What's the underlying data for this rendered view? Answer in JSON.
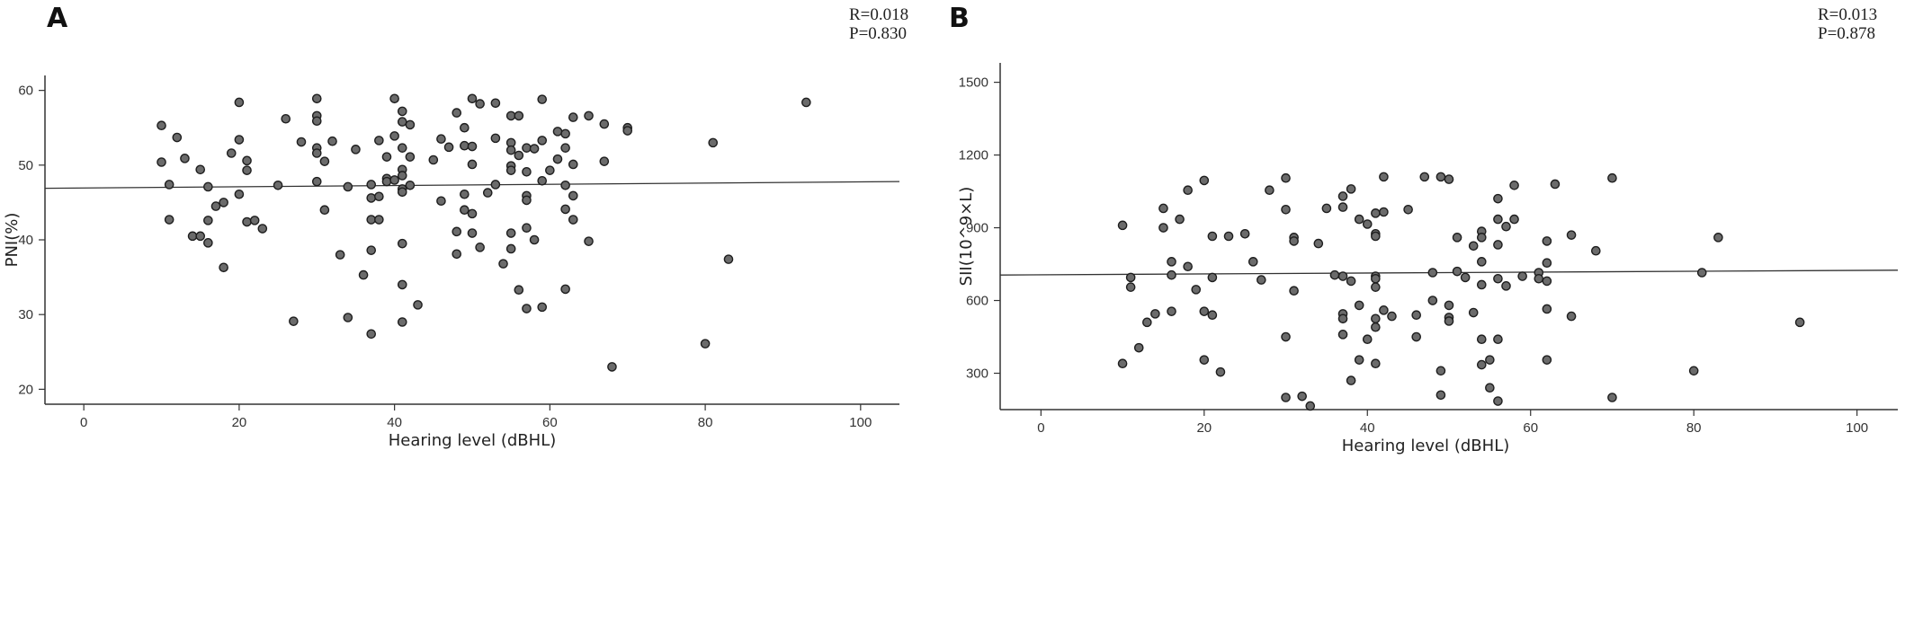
{
  "chart_data": [
    {
      "type": "scatter",
      "panel": "A",
      "stats": [
        "R=0.018",
        "P=0.830"
      ],
      "xlabel": "Hearing level (dBHL)",
      "ylabel": "PNI(%)",
      "xlim": [
        -5,
        105
      ],
      "ylim": [
        18,
        62
      ],
      "xticks": [
        0,
        20,
        40,
        60,
        80,
        100
      ],
      "yticks": [
        20,
        30,
        40,
        50,
        60
      ],
      "fit": {
        "x": [
          -5,
          105
        ],
        "y": [
          46.9,
          47.8
        ]
      },
      "points": [
        [
          10,
          55.3
        ],
        [
          10,
          50.4
        ],
        [
          11,
          47.4
        ],
        [
          11,
          42.7
        ],
        [
          12,
          53.7
        ],
        [
          13,
          50.9
        ],
        [
          14,
          40.5
        ],
        [
          15,
          49.4
        ],
        [
          15,
          40.5
        ],
        [
          16,
          47.1
        ],
        [
          16,
          42.6
        ],
        [
          16,
          39.6
        ],
        [
          17,
          44.5
        ],
        [
          18,
          45.0
        ],
        [
          18,
          36.3
        ],
        [
          19,
          51.6
        ],
        [
          20,
          58.4
        ],
        [
          20,
          53.4
        ],
        [
          20,
          46.1
        ],
        [
          21,
          42.4
        ],
        [
          21,
          49.3
        ],
        [
          21,
          50.6
        ],
        [
          22,
          42.6
        ],
        [
          23,
          41.5
        ],
        [
          25,
          47.3
        ],
        [
          26,
          56.2
        ],
        [
          27,
          29.1
        ],
        [
          28,
          53.1
        ],
        [
          30,
          58.9
        ],
        [
          30,
          56.6
        ],
        [
          30,
          55.9
        ],
        [
          30,
          52.3
        ],
        [
          30,
          51.6
        ],
        [
          30,
          47.8
        ],
        [
          31,
          50.5
        ],
        [
          31,
          44.0
        ],
        [
          32,
          53.2
        ],
        [
          33,
          38.0
        ],
        [
          34,
          47.1
        ],
        [
          34,
          29.6
        ],
        [
          35,
          52.1
        ],
        [
          36,
          35.3
        ],
        [
          37,
          47.4
        ],
        [
          37,
          45.6
        ],
        [
          37,
          42.7
        ],
        [
          37,
          38.6
        ],
        [
          37,
          27.4
        ],
        [
          38,
          53.3
        ],
        [
          38,
          45.8
        ],
        [
          38,
          42.7
        ],
        [
          39,
          51.1
        ],
        [
          39,
          48.2
        ],
        [
          39,
          47.8
        ],
        [
          40,
          58.9
        ],
        [
          40,
          53.9
        ],
        [
          40,
          48.0
        ],
        [
          41,
          57.2
        ],
        [
          41,
          55.8
        ],
        [
          41,
          52.3
        ],
        [
          41,
          49.4
        ],
        [
          41,
          48.6
        ],
        [
          41,
          46.8
        ],
        [
          41,
          46.4
        ],
        [
          41,
          39.5
        ],
        [
          41,
          34.0
        ],
        [
          41,
          29.0
        ],
        [
          42,
          55.4
        ],
        [
          42,
          51.1
        ],
        [
          42,
          47.3
        ],
        [
          43,
          31.3
        ],
        [
          45,
          50.7
        ],
        [
          46,
          53.5
        ],
        [
          46,
          45.2
        ],
        [
          47,
          52.4
        ],
        [
          48,
          57.0
        ],
        [
          48,
          41.1
        ],
        [
          48,
          38.1
        ],
        [
          49,
          55.0
        ],
        [
          49,
          52.6
        ],
        [
          49,
          46.1
        ],
        [
          49,
          44.0
        ],
        [
          50,
          58.9
        ],
        [
          50,
          52.5
        ],
        [
          50,
          50.1
        ],
        [
          50,
          43.5
        ],
        [
          50,
          40.9
        ],
        [
          51,
          58.2
        ],
        [
          51,
          39.0
        ],
        [
          52,
          46.3
        ],
        [
          53,
          58.3
        ],
        [
          53,
          53.6
        ],
        [
          53,
          47.4
        ],
        [
          54,
          36.8
        ],
        [
          55,
          56.6
        ],
        [
          55,
          53.0
        ],
        [
          55,
          52.0
        ],
        [
          55,
          49.9
        ],
        [
          55,
          49.3
        ],
        [
          55,
          40.9
        ],
        [
          55,
          38.8
        ],
        [
          56,
          56.6
        ],
        [
          56,
          51.3
        ],
        [
          56,
          33.3
        ],
        [
          57,
          52.3
        ],
        [
          57,
          49.1
        ],
        [
          57,
          45.9
        ],
        [
          57,
          45.3
        ],
        [
          57,
          41.6
        ],
        [
          57,
          30.8
        ],
        [
          58,
          52.2
        ],
        [
          58,
          40.0
        ],
        [
          59,
          58.8
        ],
        [
          59,
          53.3
        ],
        [
          59,
          47.9
        ],
        [
          59,
          31.0
        ],
        [
          60,
          49.3
        ],
        [
          61,
          54.5
        ],
        [
          61,
          50.8
        ],
        [
          62,
          54.2
        ],
        [
          62,
          52.3
        ],
        [
          62,
          47.3
        ],
        [
          62,
          44.1
        ],
        [
          62,
          33.4
        ],
        [
          63,
          50.1
        ],
        [
          63,
          45.9
        ],
        [
          63,
          42.7
        ],
        [
          63,
          56.4
        ],
        [
          65,
          56.6
        ],
        [
          65,
          39.8
        ],
        [
          67,
          55.5
        ],
        [
          67,
          50.5
        ],
        [
          68,
          23.0
        ],
        [
          70,
          55.0
        ],
        [
          70,
          54.6
        ],
        [
          80,
          26.1
        ],
        [
          81,
          53.0
        ],
        [
          83,
          37.4
        ],
        [
          93,
          58.4
        ]
      ]
    },
    {
      "type": "scatter",
      "panel": "B",
      "stats": [
        "R=0.013",
        "P=0.878"
      ],
      "xlabel": "Hearing level (dBHL)",
      "ylabel": "SII(10^9×L)",
      "xlim": [
        -5,
        105
      ],
      "ylim": [
        150,
        1580
      ],
      "xticks": [
        0,
        20,
        40,
        60,
        80,
        100
      ],
      "yticks": [
        300,
        600,
        900,
        1200,
        1500
      ],
      "fit": {
        "x": [
          -5,
          105
        ],
        "y": [
          705,
          725
        ]
      },
      "points": [
        [
          10,
          910
        ],
        [
          10,
          340
        ],
        [
          11,
          695
        ],
        [
          11,
          655
        ],
        [
          12,
          405
        ],
        [
          13,
          510
        ],
        [
          14,
          545
        ],
        [
          15,
          980
        ],
        [
          15,
          900
        ],
        [
          16,
          760
        ],
        [
          16,
          705
        ],
        [
          16,
          555
        ],
        [
          17,
          935
        ],
        [
          18,
          1055
        ],
        [
          18,
          740
        ],
        [
          19,
          645
        ],
        [
          20,
          1095
        ],
        [
          20,
          555
        ],
        [
          20,
          355
        ],
        [
          21,
          865
        ],
        [
          21,
          695
        ],
        [
          21,
          540
        ],
        [
          22,
          305
        ],
        [
          23,
          865
        ],
        [
          25,
          875
        ],
        [
          26,
          760
        ],
        [
          27,
          685
        ],
        [
          28,
          1055
        ],
        [
          30,
          1105
        ],
        [
          30,
          975
        ],
        [
          30,
          450
        ],
        [
          30,
          200
        ],
        [
          31,
          860
        ],
        [
          31,
          845
        ],
        [
          31,
          640
        ],
        [
          32,
          205
        ],
        [
          33,
          165
        ],
        [
          34,
          835
        ],
        [
          35,
          980
        ],
        [
          36,
          705
        ],
        [
          37,
          1030
        ],
        [
          37,
          985
        ],
        [
          37,
          700
        ],
        [
          37,
          545
        ],
        [
          37,
          525
        ],
        [
          37,
          460
        ],
        [
          38,
          1060
        ],
        [
          38,
          680
        ],
        [
          38,
          270
        ],
        [
          39,
          935
        ],
        [
          39,
          580
        ],
        [
          39,
          355
        ],
        [
          40,
          915
        ],
        [
          40,
          440
        ],
        [
          41,
          960
        ],
        [
          41,
          875
        ],
        [
          41,
          865
        ],
        [
          41,
          700
        ],
        [
          41,
          690
        ],
        [
          41,
          655
        ],
        [
          41,
          525
        ],
        [
          41,
          490
        ],
        [
          41,
          340
        ],
        [
          42,
          1110
        ],
        [
          42,
          965
        ],
        [
          42,
          560
        ],
        [
          43,
          535
        ],
        [
          45,
          975
        ],
        [
          46,
          540
        ],
        [
          46,
          450
        ],
        [
          47,
          1110
        ],
        [
          48,
          715
        ],
        [
          48,
          600
        ],
        [
          49,
          1110
        ],
        [
          49,
          310
        ],
        [
          49,
          210
        ],
        [
          50,
          1100
        ],
        [
          50,
          580
        ],
        [
          50,
          530
        ],
        [
          50,
          515
        ],
        [
          51,
          860
        ],
        [
          51,
          720
        ],
        [
          52,
          695
        ],
        [
          53,
          825
        ],
        [
          53,
          550
        ],
        [
          54,
          885
        ],
        [
          54,
          860
        ],
        [
          54,
          760
        ],
        [
          54,
          665
        ],
        [
          54,
          440
        ],
        [
          54,
          335
        ],
        [
          55,
          355
        ],
        [
          55,
          240
        ],
        [
          56,
          1020
        ],
        [
          56,
          935
        ],
        [
          56,
          830
        ],
        [
          56,
          690
        ],
        [
          56,
          440
        ],
        [
          56,
          185
        ],
        [
          57,
          905
        ],
        [
          57,
          660
        ],
        [
          58,
          935
        ],
        [
          58,
          1075
        ],
        [
          59,
          700
        ],
        [
          61,
          715
        ],
        [
          61,
          690
        ],
        [
          62,
          845
        ],
        [
          62,
          755
        ],
        [
          62,
          680
        ],
        [
          62,
          565
        ],
        [
          62,
          355
        ],
        [
          63,
          1080
        ],
        [
          65,
          870
        ],
        [
          65,
          535
        ],
        [
          68,
          805
        ],
        [
          70,
          1105
        ],
        [
          70,
          200
        ],
        [
          80,
          310
        ],
        [
          81,
          715
        ],
        [
          83,
          860
        ],
        [
          93,
          510
        ]
      ]
    }
  ]
}
